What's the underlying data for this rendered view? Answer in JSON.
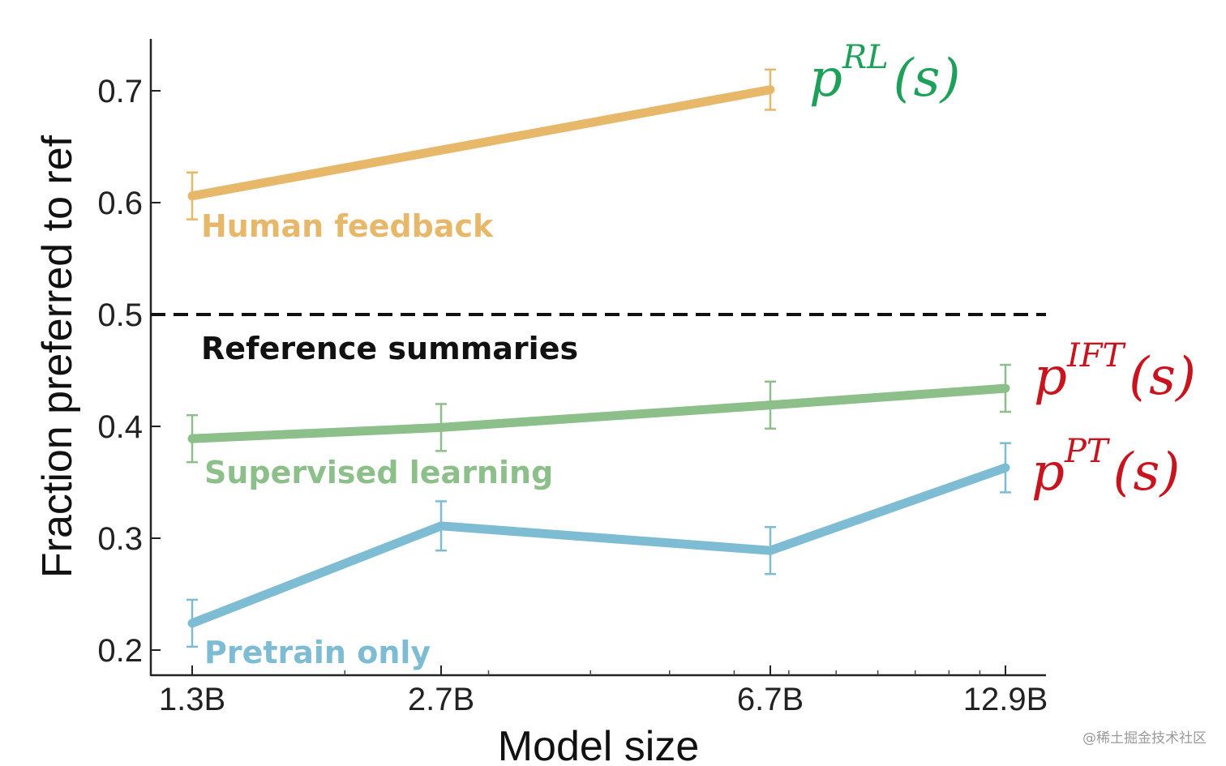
{
  "chart_data": {
    "type": "line",
    "xlabel": "Model size",
    "ylabel": "Fraction preferred to ref",
    "categories": [
      "1.3B",
      "2.7B",
      "6.7B",
      "12.9B"
    ],
    "x_log": [
      1.3,
      2.7,
      6.7,
      12.9
    ],
    "ylim": [
      0.18,
      0.745
    ],
    "yticks": [
      0.2,
      0.3,
      0.4,
      0.5,
      0.6,
      0.7
    ],
    "ytick_labels": [
      "0.2",
      "0.3",
      "0.4",
      "0.5",
      "0.6",
      "0.7"
    ],
    "x_log_scale": true,
    "grid": false,
    "reference": {
      "label": "Reference summaries",
      "value": 0.5,
      "style": "dashed",
      "color": "#111111"
    },
    "series": [
      {
        "name": "Human feedback",
        "color": "#E8B86A",
        "x": [
          1.3,
          6.7
        ],
        "values": [
          0.606,
          0.701
        ],
        "err": [
          0.021,
          0.018
        ],
        "annotation": {
          "base": "p",
          "sup": "RL",
          "arg": "(s)",
          "color": "#1FA05A"
        }
      },
      {
        "name": "Supervised learning",
        "color": "#8DBF8A",
        "x": [
          1.3,
          2.7,
          6.7,
          12.9
        ],
        "values": [
          0.389,
          0.399,
          0.419,
          0.434
        ],
        "err": [
          0.021,
          0.021,
          0.021,
          0.021
        ],
        "annotation": {
          "base": "p",
          "sup": "IFT",
          "arg": "(s)",
          "color": "#C8141E"
        }
      },
      {
        "name": "Pretrain only",
        "color": "#7DBCD3",
        "x": [
          1.3,
          2.7,
          6.7,
          12.9
        ],
        "values": [
          0.224,
          0.311,
          0.289,
          0.363
        ],
        "err": [
          0.021,
          0.022,
          0.021,
          0.022
        ],
        "annotation": {
          "base": "p",
          "sup": "PT",
          "arg": "(s)",
          "color": "#C8141E"
        }
      }
    ]
  },
  "watermark": "@稀土掘金技术社区"
}
